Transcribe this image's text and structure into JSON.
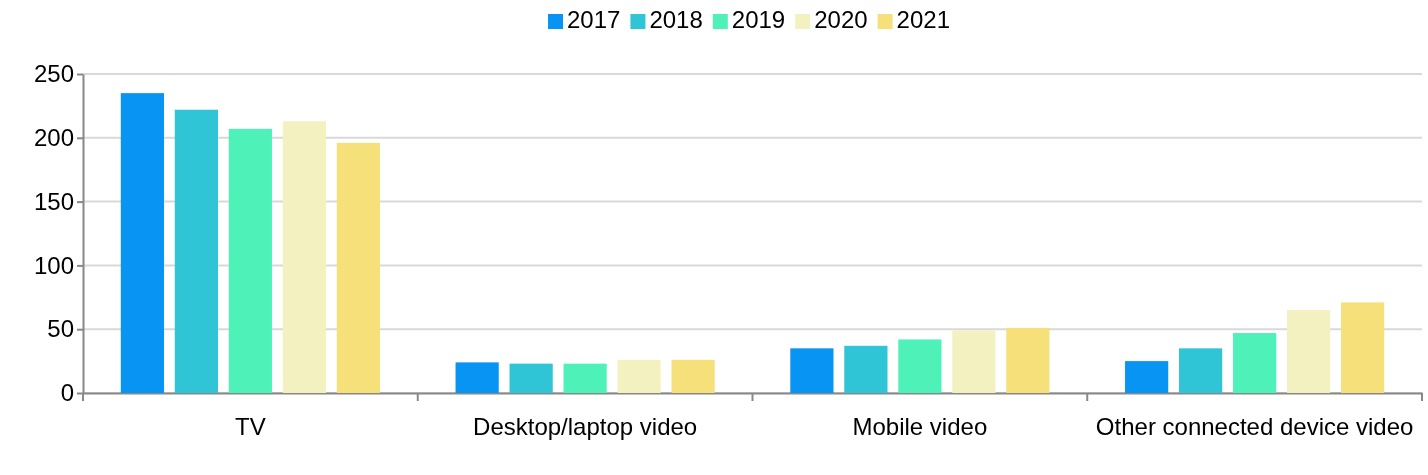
{
  "chart_data": {
    "type": "bar",
    "categories": [
      "TV",
      "Desktop/laptop video",
      "Mobile video",
      "Other connected device video"
    ],
    "series": [
      {
        "name": "2017",
        "color": "#0894f2",
        "values": [
          235,
          24,
          35,
          25
        ]
      },
      {
        "name": "2018",
        "color": "#2fc4d6",
        "values": [
          222,
          23,
          37,
          35
        ]
      },
      {
        "name": "2019",
        "color": "#4ef2b8",
        "values": [
          207,
          23,
          42,
          47
        ]
      },
      {
        "name": "2020",
        "color": "#f4f1c0",
        "values": [
          213,
          26,
          49,
          65
        ]
      },
      {
        "name": "2021",
        "color": "#f5e07a",
        "values": [
          196,
          26,
          51,
          71
        ]
      }
    ],
    "ylim": [
      0,
      250
    ],
    "yticks": [
      0,
      50,
      100,
      150,
      200,
      250
    ],
    "grid": "y",
    "legend": "top"
  }
}
